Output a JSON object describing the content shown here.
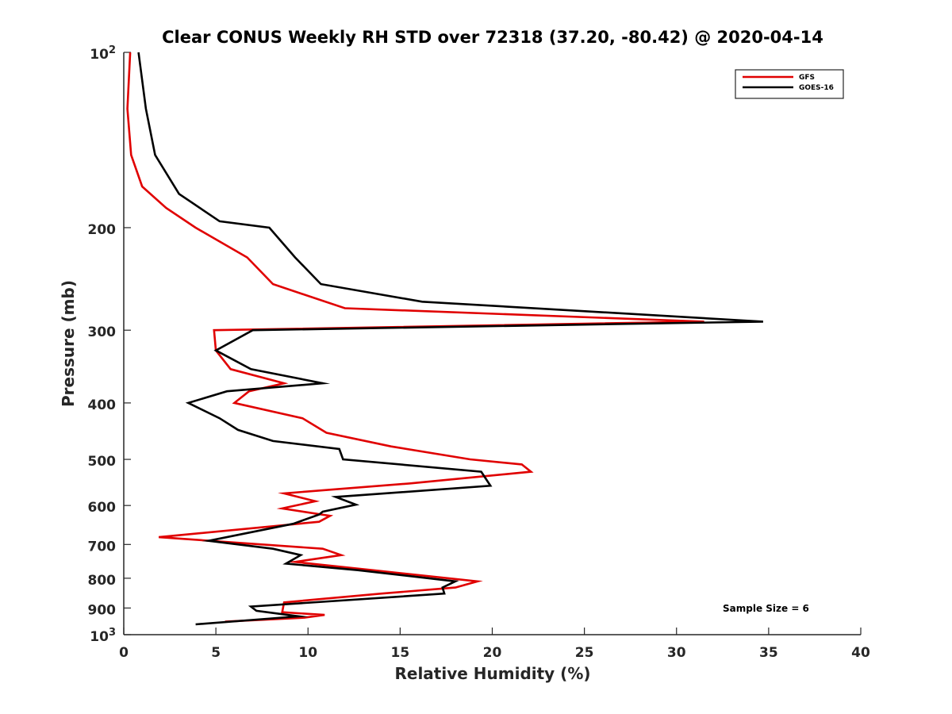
{
  "chart_data": {
    "type": "line",
    "title": "Clear CONUS Weekly RH STD over 72318 (37.20, -80.42) @ 2020-04-14",
    "xlabel": "Relative Humidity (%)",
    "ylabel": "Pressure (mb)",
    "xlim": [
      0,
      40
    ],
    "ylim": [
      100,
      1000
    ],
    "yscale": "log",
    "y_reversed": true,
    "grid": false,
    "legend_position": "top-right",
    "xticks": [
      0,
      5,
      10,
      15,
      20,
      25,
      30,
      35,
      40
    ],
    "xtick_labels": [
      "0",
      "5",
      "10",
      "15",
      "20",
      "25",
      "30",
      "35",
      "40"
    ],
    "yticks": [
      100,
      200,
      300,
      400,
      500,
      600,
      700,
      800,
      900,
      1000
    ],
    "ytick_labels": [
      {
        "base": "10",
        "exp": "2"
      },
      {
        "base": "200",
        "exp": ""
      },
      {
        "base": "300",
        "exp": ""
      },
      {
        "base": "400",
        "exp": ""
      },
      {
        "base": "500",
        "exp": ""
      },
      {
        "base": "600",
        "exp": ""
      },
      {
        "base": "700",
        "exp": ""
      },
      {
        "base": "800",
        "exp": ""
      },
      {
        "base": "900",
        "exp": ""
      },
      {
        "base": "10",
        "exp": "3"
      }
    ],
    "annotation": "Sample Size = 6",
    "series": [
      {
        "name": "GFS",
        "color": "#e00000",
        "points": [
          [
            0.35,
            100
          ],
          [
            0.2,
            125
          ],
          [
            0.4,
            150
          ],
          [
            1.0,
            170
          ],
          [
            2.3,
            185
          ],
          [
            3.9,
            200
          ],
          [
            6.7,
            225
          ],
          [
            8.1,
            250
          ],
          [
            12.0,
            275
          ],
          [
            31.5,
            290
          ],
          [
            4.9,
            300
          ],
          [
            5.0,
            325
          ],
          [
            5.8,
            350
          ],
          [
            8.7,
            370
          ],
          [
            6.8,
            382
          ],
          [
            6.0,
            400
          ],
          [
            9.7,
            425
          ],
          [
            11.0,
            450
          ],
          [
            14.5,
            475
          ],
          [
            18.8,
            500
          ],
          [
            21.6,
            510
          ],
          [
            22.1,
            525
          ],
          [
            15.5,
            550
          ],
          [
            8.7,
            572
          ],
          [
            10.4,
            590
          ],
          [
            8.6,
            607
          ],
          [
            11.2,
            625
          ],
          [
            10.6,
            640
          ],
          [
            1.9,
            680
          ],
          [
            10.8,
            712
          ],
          [
            11.8,
            730
          ],
          [
            9.3,
            750
          ],
          [
            13.5,
            775
          ],
          [
            19.2,
            810
          ],
          [
            18.0,
            830
          ],
          [
            14.0,
            850
          ],
          [
            8.7,
            880
          ],
          [
            8.6,
            915
          ],
          [
            10.9,
            925
          ],
          [
            9.8,
            935
          ],
          [
            5.5,
            950
          ]
        ]
      },
      {
        "name": "GOES-16",
        "color": "#000000",
        "points": [
          [
            0.8,
            100
          ],
          [
            1.2,
            125
          ],
          [
            1.7,
            150
          ],
          [
            3.0,
            175
          ],
          [
            5.2,
            195
          ],
          [
            7.9,
            200
          ],
          [
            9.3,
            225
          ],
          [
            10.7,
            250
          ],
          [
            16.2,
            268
          ],
          [
            34.7,
            290
          ],
          [
            7.0,
            300
          ],
          [
            5.0,
            325
          ],
          [
            6.9,
            350
          ],
          [
            10.8,
            370
          ],
          [
            5.6,
            382
          ],
          [
            3.5,
            400
          ],
          [
            5.2,
            425
          ],
          [
            6.2,
            445
          ],
          [
            8.1,
            465
          ],
          [
            11.7,
            480
          ],
          [
            11.9,
            500
          ],
          [
            19.4,
            525
          ],
          [
            19.9,
            555
          ],
          [
            11.5,
            580
          ],
          [
            12.6,
            598
          ],
          [
            10.8,
            615
          ],
          [
            10.6,
            622
          ],
          [
            9.2,
            645
          ],
          [
            4.6,
            690
          ],
          [
            8.1,
            712
          ],
          [
            9.6,
            730
          ],
          [
            8.8,
            755
          ],
          [
            12.7,
            775
          ],
          [
            18.0,
            810
          ],
          [
            17.3,
            830
          ],
          [
            17.4,
            850
          ],
          [
            6.9,
            895
          ],
          [
            7.2,
            910
          ],
          [
            9.5,
            930
          ],
          [
            3.9,
            960
          ]
        ]
      }
    ]
  }
}
